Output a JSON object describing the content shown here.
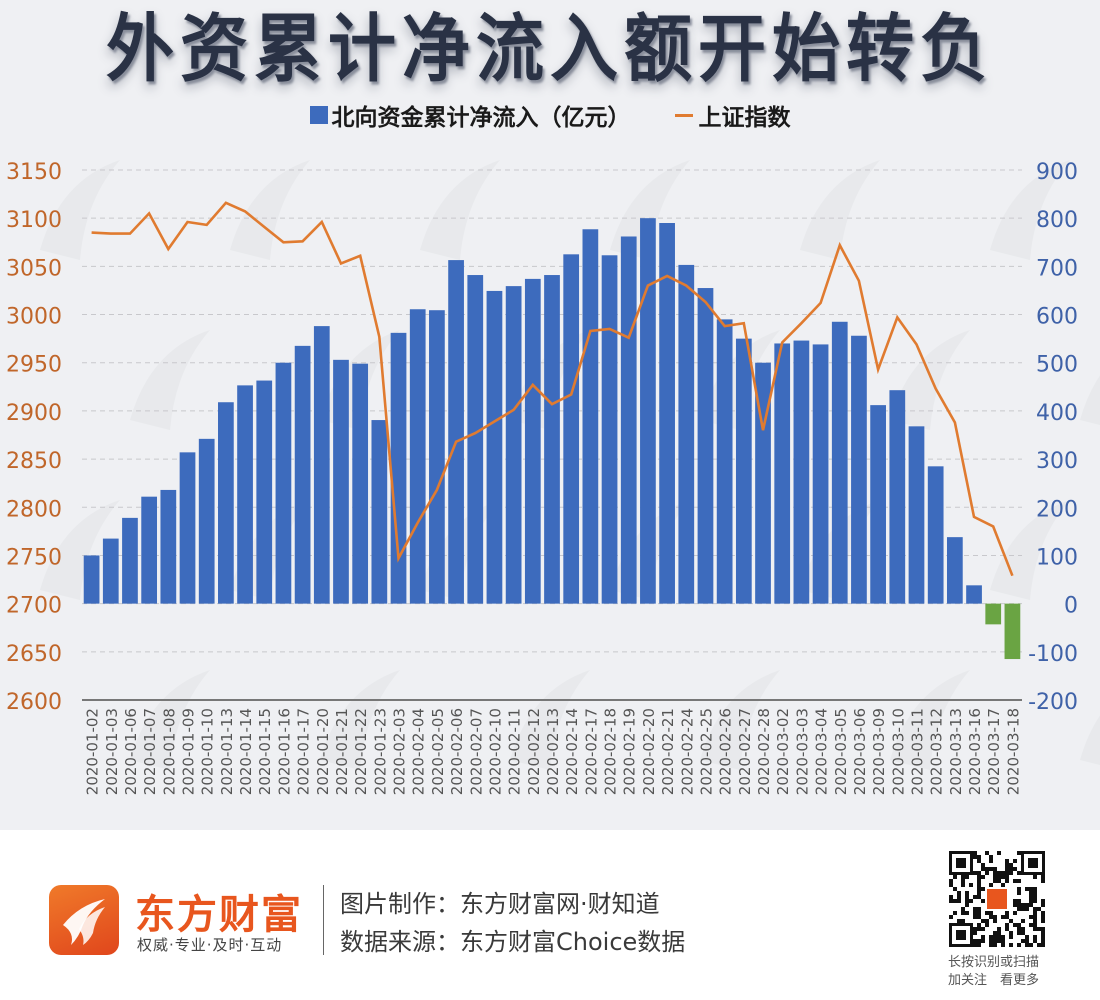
{
  "header": {
    "title": "外资累计净流入额开始转负"
  },
  "legend": {
    "bar_label": "北向资金累计净流入（亿元）",
    "line_label": "上证指数"
  },
  "colors": {
    "bar_positive": "#3d6bbd",
    "bar_negative": "#6aa443",
    "line": "#e07b30",
    "left_axis_text": "#c0662a",
    "right_axis_text": "#3f62a8",
    "grid": "#c8c8cc",
    "axis": "#777777"
  },
  "chart_data": {
    "type": "bar+line",
    "title": "外资累计净流入额开始转负",
    "xlabel": "",
    "legend_position": "top",
    "grid": true,
    "categories": [
      "2020-01-02",
      "2020-01-03",
      "2020-01-06",
      "2020-01-07",
      "2020-01-08",
      "2020-01-09",
      "2020-01-10",
      "2020-01-13",
      "2020-01-14",
      "2020-01-15",
      "2020-01-16",
      "2020-01-17",
      "2020-01-20",
      "2020-01-21",
      "2020-01-22",
      "2020-01-23",
      "2020-02-03",
      "2020-02-04",
      "2020-02-05",
      "2020-02-06",
      "2020-02-07",
      "2020-02-10",
      "2020-02-11",
      "2020-02-12",
      "2020-02-13",
      "2020-02-14",
      "2020-02-17",
      "2020-02-18",
      "2020-02-19",
      "2020-02-20",
      "2020-02-21",
      "2020-02-24",
      "2020-02-25",
      "2020-02-26",
      "2020-02-27",
      "2020-02-28",
      "2020-03-02",
      "2020-03-03",
      "2020-03-04",
      "2020-03-05",
      "2020-03-06",
      "2020-03-09",
      "2020-03-10",
      "2020-03-11",
      "2020-03-12",
      "2020-03-13",
      "2020-03-16",
      "2020-03-17",
      "2020-03-18"
    ],
    "series": [
      {
        "name": "北向资金累计净流入（亿元）",
        "type": "bar",
        "axis": "right",
        "values": [
          100,
          135,
          178,
          222,
          236,
          314,
          342,
          418,
          453,
          463,
          500,
          535,
          576,
          506,
          498,
          381,
          562,
          611,
          609,
          713,
          682,
          649,
          659,
          674,
          682,
          725,
          777,
          723,
          762,
          800,
          790,
          703,
          655,
          590,
          550,
          500,
          540,
          546,
          538,
          585,
          556,
          412,
          443,
          368,
          285,
          138,
          38,
          -43,
          -115
        ]
      },
      {
        "name": "上证指数",
        "type": "line",
        "axis": "left",
        "values": [
          3085,
          3084,
          3084,
          3105,
          3068,
          3096,
          3093,
          3116,
          3107,
          3091,
          3075,
          3076,
          3096,
          3053,
          3061,
          2977,
          2747,
          2784,
          2818,
          2868,
          2877,
          2889,
          2901,
          2927,
          2907,
          2917,
          2983,
          2985,
          2976,
          3030,
          3040,
          3030,
          3013,
          2988,
          2991,
          2880,
          2971,
          2991,
          3012,
          3072,
          3035,
          2943,
          2997,
          2969,
          2923,
          2888,
          2790,
          2780,
          2729
        ]
      }
    ],
    "left_axis": {
      "label": "上证指数",
      "ylim": [
        2600,
        3150
      ],
      "ticks": [
        3150,
        3100,
        3050,
        3000,
        2950,
        2900,
        2850,
        2800,
        2750,
        2700,
        2650,
        2600
      ]
    },
    "right_axis": {
      "label": "北向资金累计净流入（亿元）",
      "ylim": [
        -200,
        900
      ],
      "ticks": [
        900,
        800,
        700,
        600,
        500,
        400,
        300,
        200,
        100,
        0,
        -100,
        -200
      ]
    }
  },
  "footer": {
    "brand_name": "东方财富",
    "brand_slogan": "权威·专业·及时·互动",
    "credit_line1": "图片制作：东方财富网·财知道",
    "credit_line2": "数据来源：东方财富Choice数据",
    "qr_hint_line1": "长按识别或扫描",
    "qr_hint_line2": "加关注　看更多"
  }
}
